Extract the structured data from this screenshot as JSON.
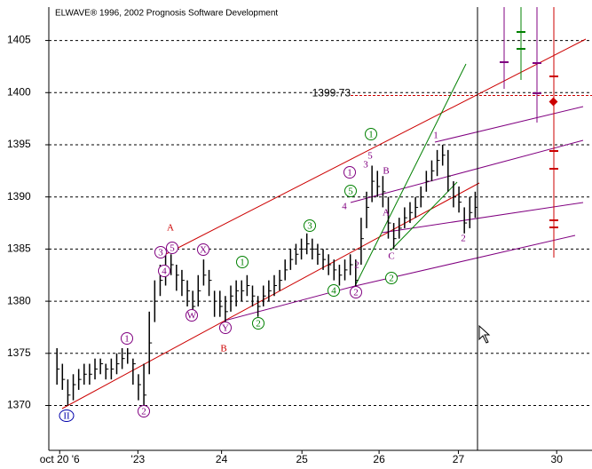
{
  "chart_data": {
    "type": "ohlc",
    "title": "ELWAVE® 1996, 2002 Prognosis Software Development",
    "x": [
      0,
      1,
      2,
      3,
      4,
      5,
      6,
      7,
      8,
      9,
      10,
      11,
      12,
      13,
      14,
      15,
      16,
      17,
      18,
      19,
      20,
      21,
      22,
      23,
      24,
      25,
      26,
      27,
      28,
      29,
      30,
      31,
      32,
      33,
      34,
      35,
      36,
      37,
      38,
      39,
      40,
      41,
      42,
      43,
      44,
      45,
      46,
      47,
      48,
      49,
      50,
      51,
      52,
      53,
      54,
      55,
      56,
      57,
      58,
      59,
      60,
      61,
      62,
      63,
      64,
      65,
      66,
      67,
      68,
      69,
      70,
      71,
      72,
      73,
      74,
      75,
      76,
      77
    ],
    "high": [
      1375.5,
      1374,
      1372.5,
      1373,
      1373.5,
      1374,
      1374,
      1374.5,
      1374.5,
      1374,
      1374.5,
      1375,
      1375.5,
      1375.5,
      1374.5,
      1373,
      1374,
      1379,
      1382,
      1383.5,
      1384.5,
      1384.5,
      1383.5,
      1383,
      1382,
      1381,
      1382.5,
      1384,
      1383,
      1381,
      1381,
      1380.5,
      1381.5,
      1382,
      1382,
      1382.5,
      1381.5,
      1380.5,
      1381.5,
      1382,
      1382.5,
      1383,
      1384,
      1385,
      1385.5,
      1386,
      1386.5,
      1386,
      1385.5,
      1385,
      1384.5,
      1384,
      1383.5,
      1384,
      1384.5,
      1384,
      1388,
      1390.5,
      1393,
      1392.5,
      1392,
      1390,
      1387.5,
      1388,
      1389,
      1389.5,
      1390,
      1391,
      1392.5,
      1393.5,
      1394.5,
      1395,
      1394.5,
      1391.5,
      1391,
      1389,
      1390,
      1390.5
    ],
    "low": [
      1372,
      1371.5,
      1370,
      1370.5,
      1371.5,
      1372,
      1372,
      1372.5,
      1373,
      1372.5,
      1372.5,
      1373,
      1373.5,
      1374,
      1372,
      1370.5,
      1370,
      1373,
      1378,
      1380.5,
      1381.5,
      1382.5,
      1381,
      1380.5,
      1379.5,
      1378.5,
      1379.5,
      1381.5,
      1380.5,
      1378.5,
      1378.5,
      1378,
      1379,
      1379.5,
      1380,
      1380.5,
      1379.5,
      1378.5,
      1379.5,
      1380,
      1380.5,
      1381,
      1382,
      1383,
      1383.5,
      1384,
      1384.5,
      1384,
      1383.5,
      1383,
      1382.5,
      1382,
      1381.5,
      1382,
      1382.5,
      1381,
      1383.5,
      1387,
      1389.5,
      1390,
      1389,
      1386,
      1385,
      1386,
      1387,
      1387.5,
      1388,
      1389,
      1390.5,
      1391.5,
      1392,
      1393,
      1390.5,
      1389,
      1388.5,
      1386.5,
      1387,
      1388
    ],
    "close": [
      1373.5,
      1372.5,
      1371,
      1372,
      1372.5,
      1373,
      1373,
      1373.5,
      1374,
      1373.5,
      1373.5,
      1374,
      1374.5,
      1375,
      1374,
      1372,
      1371,
      1376,
      1380,
      1382,
      1383,
      1383.5,
      1382.5,
      1382,
      1381,
      1379.5,
      1381,
      1382.5,
      1382,
      1380,
      1379.5,
      1379,
      1380.5,
      1381,
      1381,
      1381.5,
      1380.5,
      1379.5,
      1380.5,
      1381,
      1381.5,
      1382,
      1383,
      1384,
      1384.5,
      1385,
      1385.5,
      1385,
      1384.5,
      1384,
      1383.5,
      1383,
      1382.5,
      1383,
      1383.5,
      1382,
      1386,
      1389,
      1391.5,
      1391,
      1390.5,
      1387.5,
      1386,
      1387,
      1388,
      1388.5,
      1389,
      1390,
      1391.5,
      1392.5,
      1393.5,
      1394,
      1392,
      1390,
      1389.5,
      1387.5,
      1388.5,
      1389
    ],
    "color": "#000000",
    "xlim": [
      -1.5,
      98.5
    ],
    "xticks": [
      {
        "value": 0.5,
        "label": "oct 20 '6"
      },
      {
        "value": 14.9,
        "label": "'23"
      },
      {
        "value": 30.3,
        "label": "24"
      },
      {
        "value": 45.1,
        "label": "25"
      },
      {
        "value": 59.3,
        "label": "26"
      },
      {
        "value": 73.9,
        "label": "27"
      },
      {
        "value": 92,
        "label": "30"
      }
    ],
    "ylim": [
      1365.7,
      1408.2
    ],
    "yticks": [
      1370,
      1375,
      1380,
      1385,
      1390,
      1395,
      1400,
      1405
    ],
    "grid": true,
    "reference_line": {
      "value": 1399.73,
      "color": "#cc0000"
    },
    "wave_labels": [
      {
        "text": "II",
        "color": "#0000aa",
        "circled": true
      },
      {
        "text": "1",
        "color": "#800080",
        "circled": true
      },
      {
        "text": "2",
        "color": "#800080",
        "circled": true
      },
      {
        "text": "3",
        "color": "#800080",
        "circled": true
      },
      {
        "text": "4",
        "color": "#800080",
        "circled": true
      },
      {
        "text": "5",
        "color": "#800080",
        "circled": true
      },
      {
        "text": "A",
        "color": "#cc0000",
        "circled": false
      },
      {
        "text": "X",
        "color": "#800080",
        "circled": true
      },
      {
        "text": "W",
        "color": "#800080",
        "circled": true
      },
      {
        "text": "Y",
        "color": "#800080",
        "circled": true
      },
      {
        "text": "B",
        "color": "#cc0000",
        "circled": false
      },
      {
        "text": "1",
        "color": "#008000",
        "circled": true
      },
      {
        "text": "2",
        "color": "#008000",
        "circled": true
      },
      {
        "text": "3",
        "color": "#008000",
        "circled": true
      },
      {
        "text": "4",
        "color": "#008000",
        "circled": true
      },
      {
        "text": "5",
        "color": "#008000",
        "circled": true
      },
      {
        "text": "1",
        "color": "#008000",
        "circled": true
      },
      {
        "text": "2",
        "color": "#008000",
        "circled": true
      },
      {
        "text": "1",
        "color": "#800080",
        "circled": true
      },
      {
        "text": "2",
        "color": "#800080",
        "circled": true
      },
      {
        "text": "3",
        "color": "#800080",
        "circled": false
      },
      {
        "text": "4",
        "color": "#800080",
        "circled": false
      },
      {
        "text": "5",
        "color": "#800080",
        "circled": false
      },
      {
        "text": "2",
        "color": "#800080",
        "circled": false
      },
      {
        "text": "A",
        "color": "#800080",
        "circled": false
      },
      {
        "text": "B",
        "color": "#800080",
        "circled": false
      },
      {
        "text": "C",
        "color": "#800080",
        "circled": false
      },
      {
        "text": "1",
        "color": "#800080",
        "circled": false
      },
      {
        "text": "2",
        "color": "#800080",
        "circled": false
      }
    ]
  }
}
